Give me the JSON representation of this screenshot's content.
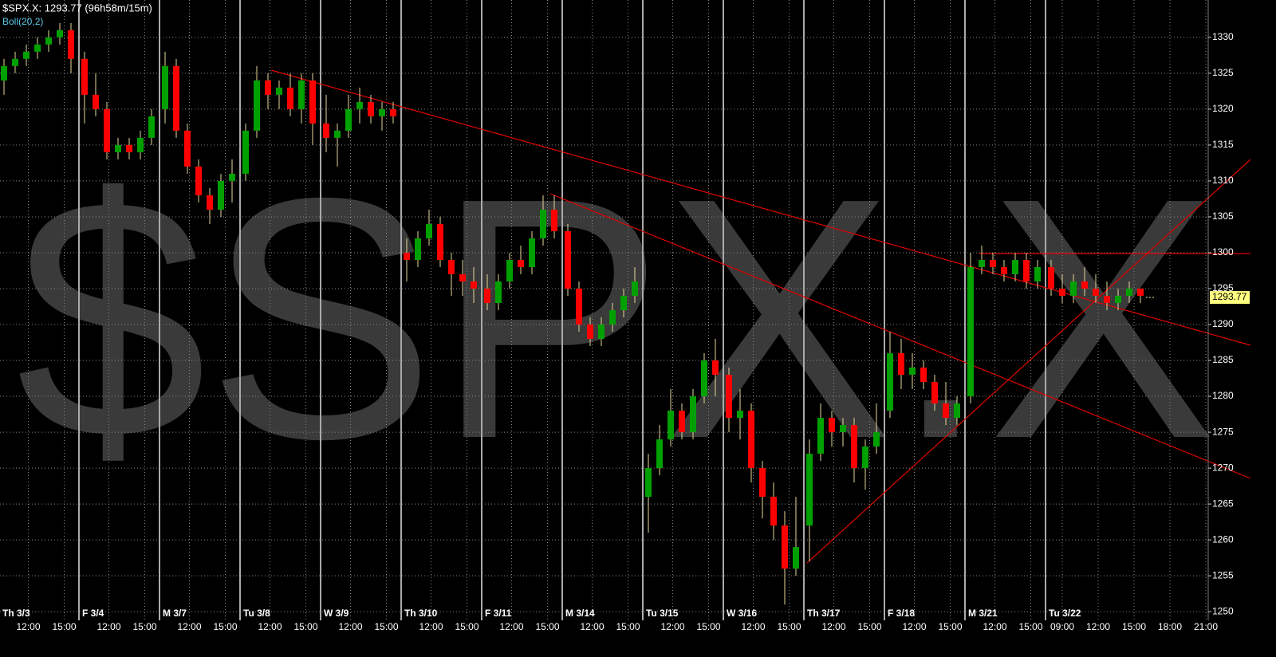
{
  "chart_data": {
    "type": "candlestick",
    "header": "$SPX.X: 1293.77 (96h58m/15m)",
    "indicator": "Boll(20,2)",
    "watermark": "$SPX.X",
    "last_value": 1293.77,
    "last_label": "1293.77",
    "up_color": "#00a000",
    "down_color": "#ff0000",
    "wick_color": "#e6d79a",
    "ylim": [
      1248.8,
      1335.2
    ],
    "yticks": [
      1250,
      1255,
      1260,
      1265,
      1270,
      1275,
      1280,
      1285,
      1290,
      1295,
      1300,
      1305,
      1310,
      1315,
      1320,
      1325,
      1330
    ],
    "grid": true,
    "days": [
      {
        "label": "Th 3/3",
        "times": [
          "12:00",
          "15:00"
        ],
        "candles": [
          [
            1324,
            1327,
            1322,
            1326
          ],
          [
            1326,
            1328,
            1325,
            1327
          ],
          [
            1327,
            1329,
            1326,
            1328
          ],
          [
            1328,
            1330,
            1327,
            1329
          ],
          [
            1329,
            1331,
            1328,
            1330
          ],
          [
            1330,
            1332,
            1329,
            1331
          ],
          [
            1331,
            1332,
            1325,
            1327
          ]
        ]
      },
      {
        "label": "F 3/4",
        "times": [
          "12:00",
          "15:00"
        ],
        "candles": [
          [
            1327,
            1328,
            1318,
            1322
          ],
          [
            1322,
            1325,
            1319,
            1320
          ],
          [
            1320,
            1321,
            1313,
            1314
          ],
          [
            1314,
            1316,
            1313,
            1315
          ],
          [
            1315,
            1316,
            1313,
            1314
          ],
          [
            1314,
            1317,
            1313,
            1316
          ],
          [
            1316,
            1320,
            1315,
            1319
          ]
        ]
      },
      {
        "label": "M 3/7",
        "times": [
          "12:00",
          "15:00"
        ],
        "candles": [
          [
            1320,
            1328,
            1318,
            1326
          ],
          [
            1326,
            1327,
            1316,
            1317
          ],
          [
            1317,
            1318,
            1311,
            1312
          ],
          [
            1312,
            1313,
            1307,
            1308
          ],
          [
            1308,
            1309,
            1304,
            1306
          ],
          [
            1306,
            1311,
            1305,
            1310
          ],
          [
            1310,
            1313,
            1307,
            1311
          ]
        ]
      },
      {
        "label": "Tu 3/8",
        "times": [
          "12:00",
          "15:00"
        ],
        "candles": [
          [
            1311,
            1318,
            1310,
            1317
          ],
          [
            1317,
            1326,
            1316,
            1324
          ],
          [
            1324,
            1325,
            1320,
            1322
          ],
          [
            1322,
            1324,
            1320,
            1323
          ],
          [
            1323,
            1325,
            1319,
            1320
          ],
          [
            1320,
            1325,
            1318,
            1324
          ],
          [
            1324,
            1325,
            1315,
            1318
          ]
        ]
      },
      {
        "label": "W 3/9",
        "times": [
          "12:00",
          "15:00"
        ],
        "candles": [
          [
            1318,
            1322,
            1314,
            1316
          ],
          [
            1316,
            1318,
            1312,
            1317
          ],
          [
            1317,
            1322,
            1316,
            1320
          ],
          [
            1320,
            1323,
            1318,
            1321
          ],
          [
            1321,
            1322,
            1318,
            1319
          ],
          [
            1319,
            1321,
            1317,
            1320
          ],
          [
            1320,
            1321,
            1318,
            1319
          ]
        ]
      },
      {
        "label": "Th 3/10",
        "times": [
          "12:00",
          "15:00"
        ],
        "candles": [
          [
            1300,
            1302,
            1296,
            1299
          ],
          [
            1299,
            1303,
            1298,
            1302
          ],
          [
            1302,
            1306,
            1301,
            1304
          ],
          [
            1304,
            1305,
            1298,
            1299
          ],
          [
            1299,
            1300,
            1294,
            1297
          ],
          [
            1297,
            1299,
            1294,
            1296
          ],
          [
            1296,
            1298,
            1293,
            1295
          ]
        ]
      },
      {
        "label": "F 3/11",
        "times": [
          "12:00",
          "15:00"
        ],
        "candles": [
          [
            1295,
            1297,
            1292,
            1293
          ],
          [
            1293,
            1297,
            1292,
            1296
          ],
          [
            1296,
            1300,
            1295,
            1299
          ],
          [
            1299,
            1301,
            1297,
            1298
          ],
          [
            1298,
            1303,
            1297,
            1302
          ],
          [
            1302,
            1308,
            1301,
            1306
          ],
          [
            1306,
            1308,
            1302,
            1303
          ]
        ]
      },
      {
        "label": "M 3/14",
        "times": [
          "12:00",
          "15:00"
        ],
        "candles": [
          [
            1303,
            1304,
            1294,
            1295
          ],
          [
            1295,
            1296,
            1289,
            1290
          ],
          [
            1290,
            1291,
            1287,
            1288
          ],
          [
            1288,
            1291,
            1287,
            1290
          ],
          [
            1290,
            1293,
            1289,
            1292
          ],
          [
            1292,
            1295,
            1291,
            1294
          ],
          [
            1294,
            1298,
            1293,
            1296
          ]
        ]
      },
      {
        "label": "Tu 3/15",
        "times": [
          "12:00",
          "15:00"
        ],
        "candles": [
          [
            1266,
            1272,
            1261,
            1270
          ],
          [
            1270,
            1276,
            1269,
            1274
          ],
          [
            1274,
            1281,
            1273,
            1278
          ],
          [
            1278,
            1279,
            1274,
            1275
          ],
          [
            1275,
            1281,
            1274,
            1280
          ],
          [
            1280,
            1286,
            1279,
            1285
          ],
          [
            1285,
            1288,
            1280,
            1283
          ]
        ]
      },
      {
        "label": "W 3/16",
        "times": [
          "12:00",
          "15:00"
        ],
        "candles": [
          [
            1283,
            1284,
            1275,
            1277
          ],
          [
            1277,
            1281,
            1274,
            1278
          ],
          [
            1278,
            1279,
            1268,
            1270
          ],
          [
            1270,
            1271,
            1263,
            1266
          ],
          [
            1266,
            1268,
            1260,
            1262
          ],
          [
            1262,
            1264,
            1251,
            1256
          ],
          [
            1256,
            1266,
            1255,
            1259
          ]
        ]
      },
      {
        "label": "Th 3/17",
        "times": [
          "12:00",
          "15:00"
        ],
        "candles": [
          [
            1262,
            1274,
            1257,
            1272
          ],
          [
            1272,
            1279,
            1271,
            1277
          ],
          [
            1277,
            1278,
            1273,
            1275
          ],
          [
            1275,
            1277,
            1273,
            1276
          ],
          [
            1276,
            1277,
            1268,
            1270
          ],
          [
            1270,
            1274,
            1267,
            1273
          ],
          [
            1273,
            1279,
            1272,
            1275
          ]
        ]
      },
      {
        "label": "F 3/18",
        "times": [
          "12:00",
          "15:00"
        ],
        "candles": [
          [
            1278,
            1289,
            1277,
            1286
          ],
          [
            1286,
            1288,
            1281,
            1283
          ],
          [
            1283,
            1286,
            1281,
            1284
          ],
          [
            1284,
            1285,
            1281,
            1282
          ],
          [
            1282,
            1283,
            1278,
            1279
          ],
          [
            1279,
            1282,
            1276,
            1277
          ],
          [
            1277,
            1280,
            1276,
            1279
          ]
        ]
      },
      {
        "label": "M 3/21",
        "times": [
          "12:00",
          "15:00"
        ],
        "candles": [
          [
            1280,
            1300,
            1279,
            1298
          ],
          [
            1298,
            1301,
            1297,
            1299
          ],
          [
            1299,
            1300,
            1297,
            1298
          ],
          [
            1298,
            1299,
            1296,
            1297
          ],
          [
            1297,
            1300,
            1296,
            1299
          ],
          [
            1299,
            1300,
            1295,
            1296
          ],
          [
            1296,
            1299,
            1295,
            1298
          ]
        ]
      },
      {
        "label": "Tu 3/22",
        "times": [
          "09:00",
          "12:00",
          "15:00",
          "18:00",
          "21:00"
        ],
        "candles": [
          [
            1298,
            1299,
            1294,
            1295
          ],
          [
            1295,
            1297,
            1293,
            1294
          ],
          [
            1294,
            1297,
            1293,
            1296
          ],
          [
            1296,
            1298,
            1294,
            1295
          ],
          [
            1295,
            1297,
            1293,
            1294
          ],
          [
            1294,
            1296,
            1292,
            1293
          ],
          [
            1293,
            1295,
            1292,
            1294
          ],
          [
            1294,
            1296,
            1293,
            1295
          ],
          [
            1295,
            1295,
            1293,
            1294
          ]
        ]
      }
    ]
  }
}
